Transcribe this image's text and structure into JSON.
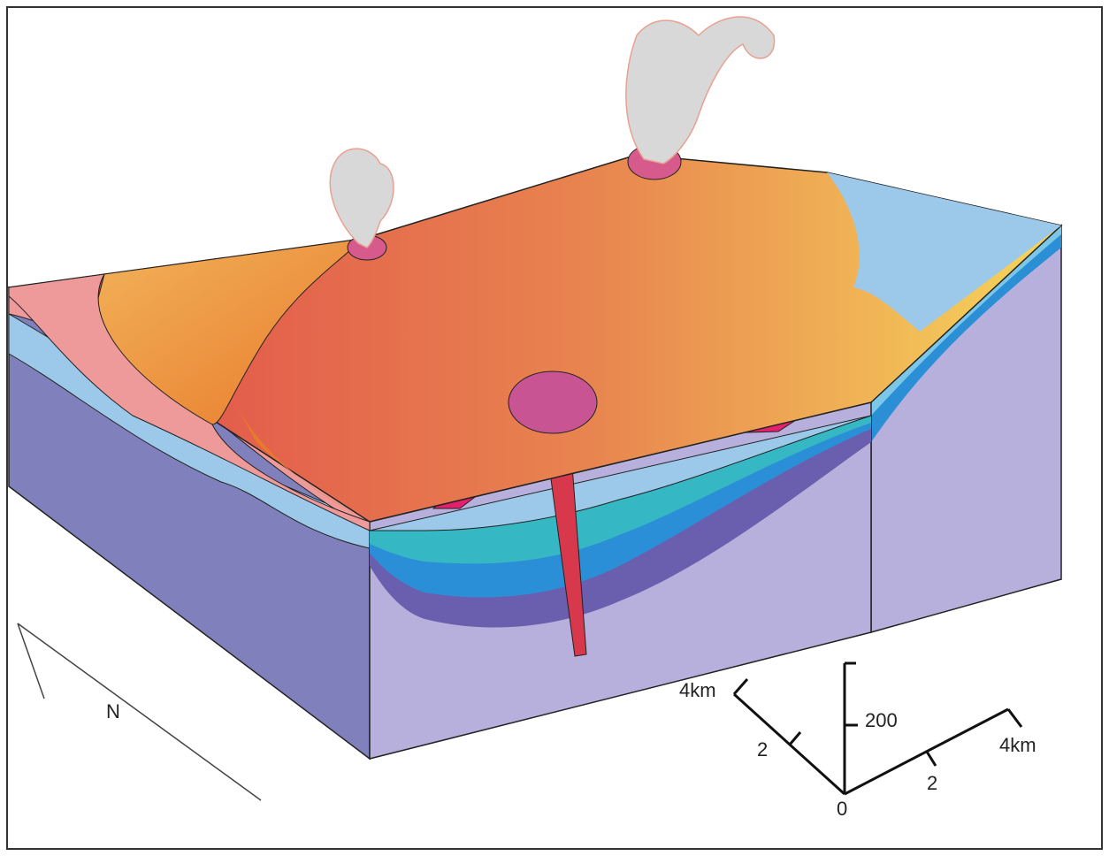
{
  "north_arrow": {
    "label": "N"
  },
  "scale_bar": {
    "left_axis": {
      "end_label": "4km",
      "mid_label": "2"
    },
    "vertical_axis": {
      "label": "200"
    },
    "right_axis": {
      "end_label": "4km",
      "mid_label": "2"
    },
    "origin_label": "0"
  }
}
